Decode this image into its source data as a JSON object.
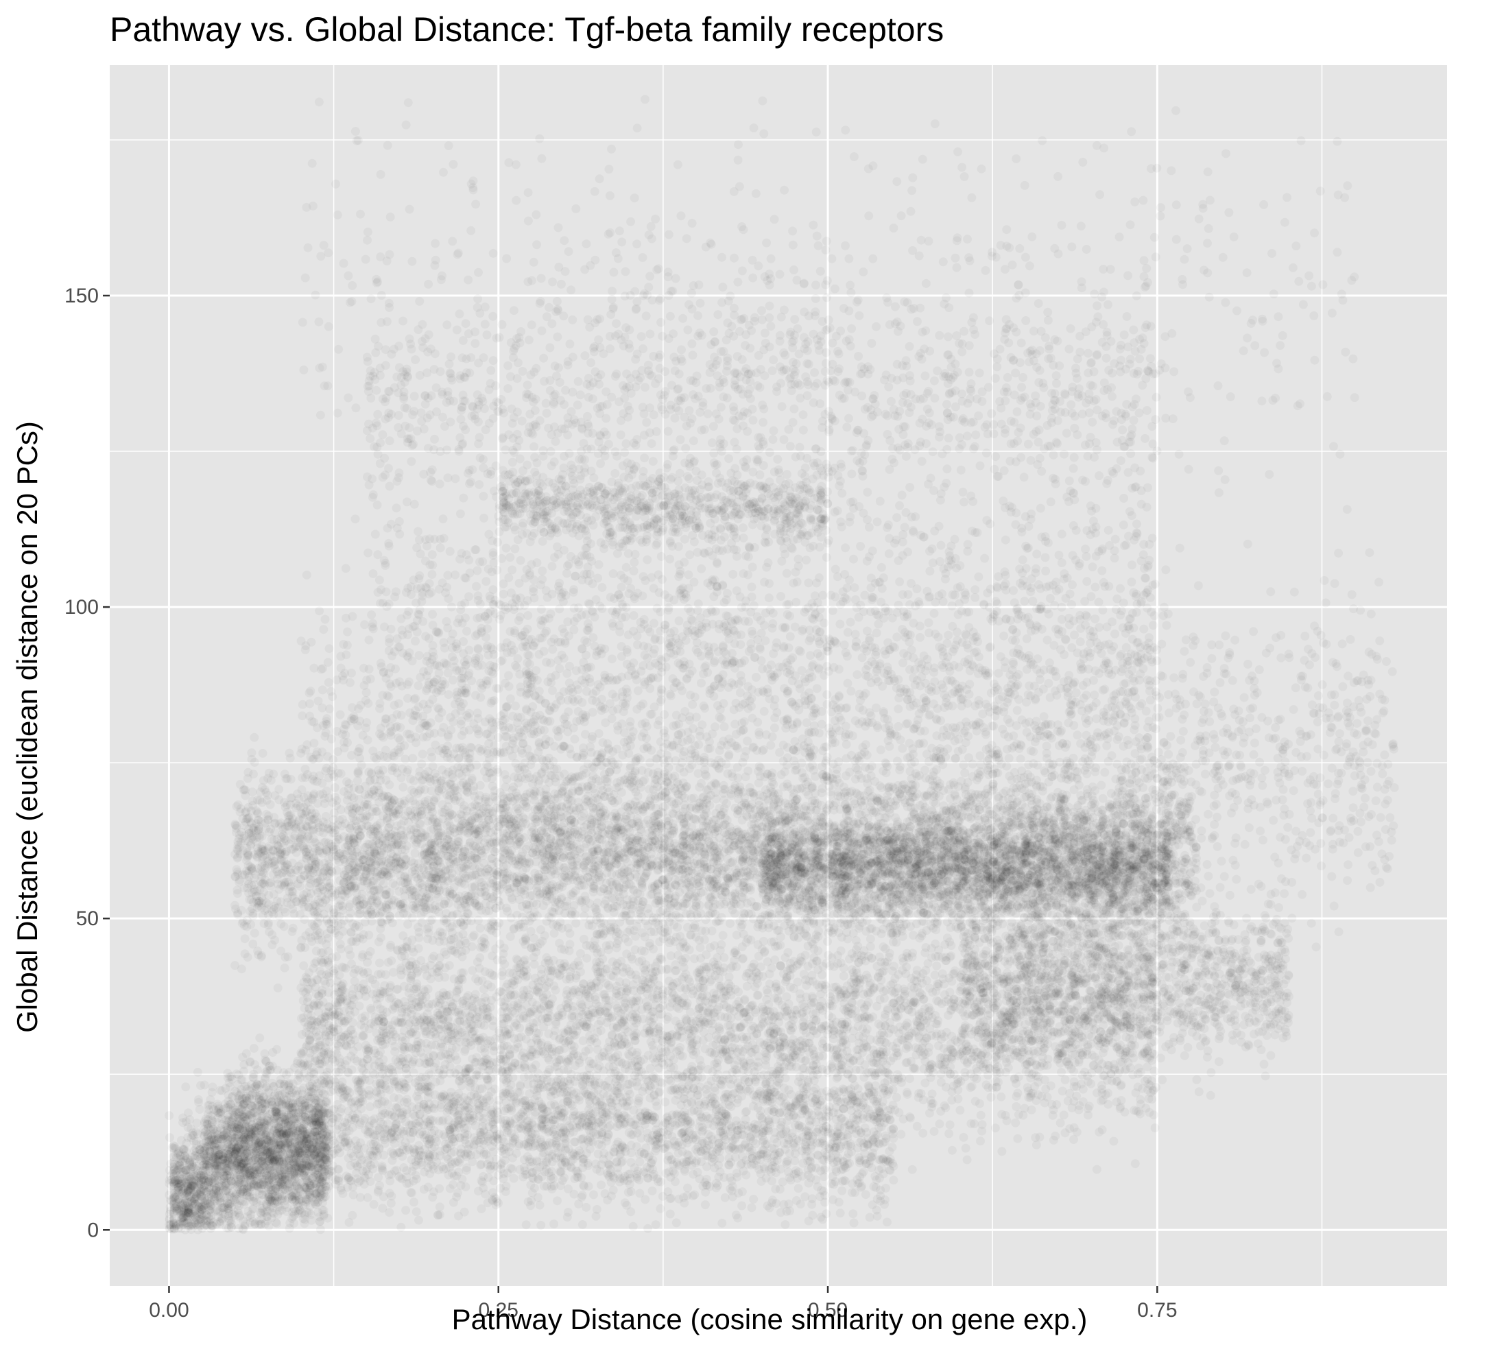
{
  "chart_data": {
    "type": "scatter",
    "title": "Pathway vs. Global Distance: Tgf-beta family receptors",
    "xlabel": "Pathway Distance (cosine similarity on gene exp.)",
    "ylabel": "Global Distance (euclidean distance on 20 PCs)",
    "xlim": [
      -0.045,
      0.97
    ],
    "ylim": [
      -9,
      187
    ],
    "x_ticks": [
      0.0,
      0.25,
      0.5,
      0.75
    ],
    "x_tick_labels": [
      "0.00",
      "0.25",
      "0.50",
      "0.75"
    ],
    "y_ticks": [
      0,
      50,
      100,
      150
    ],
    "y_tick_labels": [
      "0",
      "50",
      "100",
      "150"
    ],
    "grid": true,
    "background": "#E5E5E5",
    "grid_color": "#FFFFFF",
    "point_color": "#000000",
    "point_alpha": 0.035,
    "clusters": [
      {
        "x_range": [
          0.0,
          0.12
        ],
        "y_center": 12,
        "y_spread": 6,
        "share": 0.1
      },
      {
        "x_range": [
          0.05,
          0.55
        ],
        "y_center": 15,
        "y_spread": 6,
        "share": 0.1
      },
      {
        "x_range": [
          0.1,
          0.75
        ],
        "y_center": 33,
        "y_spread": 8,
        "share": 0.16
      },
      {
        "x_range": [
          0.6,
          0.85
        ],
        "y_center": 40,
        "y_spread": 6,
        "share": 0.05
      },
      {
        "x_range": [
          0.05,
          0.78
        ],
        "y_center": 60,
        "y_spread": 7,
        "share": 0.22
      },
      {
        "x_range": [
          0.45,
          0.76
        ],
        "y_center": 58,
        "y_spread": 4,
        "share": 0.1
      },
      {
        "x_range": [
          0.1,
          0.93
        ],
        "y_center": 76,
        "y_spread": 12,
        "share": 0.1
      },
      {
        "x_range": [
          0.15,
          0.75
        ],
        "y_center": 95,
        "y_spread": 12,
        "share": 0.07
      },
      {
        "x_range": [
          0.25,
          0.5
        ],
        "y_center": 116,
        "y_spread": 3,
        "share": 0.03
      },
      {
        "x_range": [
          0.15,
          0.75
        ],
        "y_center": 133,
        "y_spread": 10,
        "share": 0.05
      },
      {
        "x_range": [
          0.1,
          0.9
        ],
        "y_center": 150,
        "y_spread": 14,
        "share": 0.02
      }
    ]
  }
}
